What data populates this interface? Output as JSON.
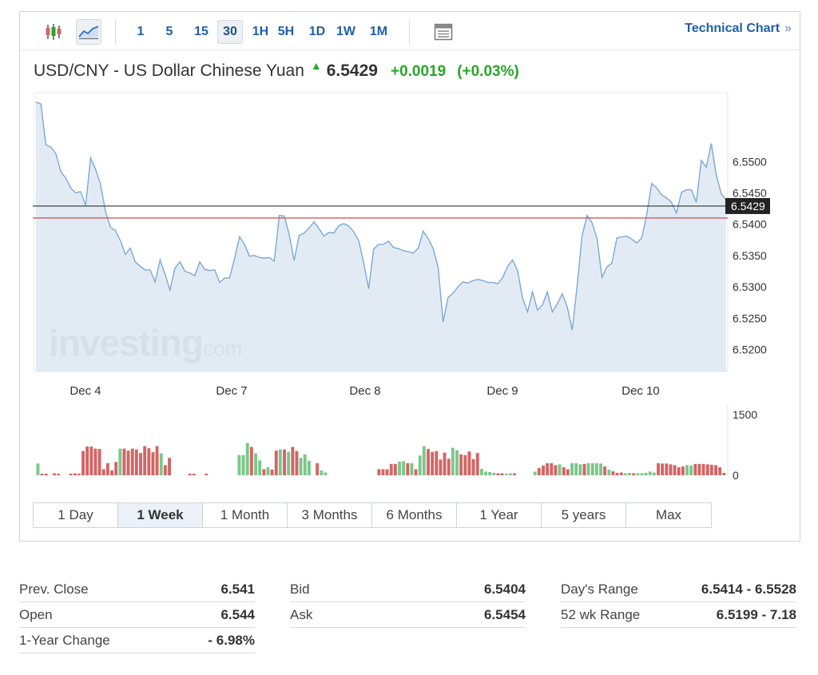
{
  "toolbar": {
    "icons": [
      "candlestick-icon",
      "area-chart-icon",
      "table-icon"
    ],
    "intervals": [
      "1",
      "5",
      "15",
      "30",
      "1H",
      "5H",
      "1D",
      "1W",
      "1M"
    ],
    "active_interval": "30",
    "tech_link": "Technical Chart",
    "tech_link_arrow": "»"
  },
  "header": {
    "pair": "USD/CNY - US Dollar Chinese Yuan",
    "price": "6.5429",
    "change": "+0.0019",
    "change_pct": "(+0.03%)",
    "change_color": "#2aa52a"
  },
  "chart_data": {
    "type": "area",
    "y_ticks": [
      "6.5500",
      "6.5450",
      "6.5400",
      "6.5350",
      "6.5300",
      "6.5250",
      "6.5200"
    ],
    "y_range": [
      6.5165,
      6.561
    ],
    "x_labels": [
      "Dec 4",
      "Dec 7",
      "Dec 8",
      "Dec 9",
      "Dec 10"
    ],
    "current_price": 6.5429,
    "current_price_label": "6.5429",
    "prev_close": 6.541,
    "watermark": "investing",
    "watermark_suffix": ".com",
    "series": [
      {
        "values": [
          6.5595,
          6.5592,
          6.5527,
          6.5523,
          6.5513,
          6.5484,
          6.5474,
          6.5458,
          6.545,
          6.5452,
          6.543,
          6.5506,
          6.5488,
          6.5464,
          6.5421,
          6.5395,
          6.539,
          6.5374,
          6.5352,
          6.5362,
          6.534,
          6.5333,
          6.5327,
          6.5327,
          6.5308,
          6.5343,
          6.532,
          6.5295,
          6.533,
          6.534,
          6.5325,
          6.5322,
          6.5318,
          6.534,
          6.5328,
          6.5326,
          6.5327,
          6.5307,
          6.5314,
          6.5314,
          6.5345,
          6.538,
          6.5368,
          6.5349,
          6.535,
          6.5347,
          6.5346,
          6.5347,
          6.5341,
          6.5414,
          6.5413,
          6.5384,
          6.5342,
          6.5382,
          6.5386,
          6.5394,
          6.5404,
          6.5393,
          6.5381,
          6.5387,
          6.5386,
          6.5398,
          6.5401,
          6.5397,
          6.5388,
          6.5374,
          6.5339,
          6.5297,
          6.536,
          6.5368,
          6.5368,
          6.5373,
          6.5363,
          6.5361,
          6.5358,
          6.5356,
          6.5354,
          6.5362,
          6.5389,
          6.5377,
          6.5361,
          6.5331,
          6.5244,
          6.5283,
          6.529,
          6.53,
          6.5308,
          6.5306,
          6.531,
          6.5312,
          6.531,
          6.5307,
          6.5307,
          6.5305,
          6.5315,
          6.5333,
          6.5343,
          6.5326,
          6.5282,
          6.526,
          6.5292,
          6.5263,
          6.5271,
          6.5292,
          6.526,
          6.5273,
          6.5289,
          6.5268,
          6.5231,
          6.5302,
          6.5382,
          6.5414,
          6.5402,
          6.5377,
          6.5315,
          6.5332,
          6.5338,
          6.5378,
          6.538,
          6.5381,
          6.5376,
          6.537,
          6.5378,
          6.5415,
          6.5465,
          6.5458,
          6.5447,
          6.5442,
          6.5435,
          6.5418,
          6.5451,
          6.5455,
          6.5455,
          6.5435,
          6.5502,
          6.5491,
          6.5529,
          6.5479,
          6.5449,
          6.5438
        ]
      }
    ],
    "volume": {
      "y_ticks": [
        "1500",
        "0"
      ],
      "y_max": 1500,
      "up_color": "#7cc68a",
      "down_color": "#d26565",
      "bars": [
        [
          290,
          1
        ],
        [
          40,
          0
        ],
        [
          30,
          0
        ],
        [
          0,
          0
        ],
        [
          50,
          0
        ],
        [
          40,
          0
        ],
        [
          0,
          0
        ],
        [
          0,
          0
        ],
        [
          40,
          0
        ],
        [
          50,
          0
        ],
        [
          40,
          0
        ],
        [
          600,
          0
        ],
        [
          710,
          0
        ],
        [
          710,
          0
        ],
        [
          660,
          0
        ],
        [
          650,
          0
        ],
        [
          150,
          0
        ],
        [
          300,
          0
        ],
        [
          120,
          0
        ],
        [
          330,
          0
        ],
        [
          660,
          1
        ],
        [
          660,
          0
        ],
        [
          610,
          0
        ],
        [
          660,
          0
        ],
        [
          640,
          0
        ],
        [
          550,
          0
        ],
        [
          720,
          0
        ],
        [
          670,
          0
        ],
        [
          570,
          0
        ],
        [
          720,
          0
        ],
        [
          540,
          1
        ],
        [
          250,
          0
        ],
        [
          430,
          0
        ],
        [
          0,
          0
        ],
        [
          0,
          0
        ],
        [
          0,
          0
        ],
        [
          0,
          0
        ],
        [
          20,
          0
        ],
        [
          30,
          0
        ],
        [
          0,
          0
        ],
        [
          0,
          0
        ],
        [
          20,
          0
        ],
        [
          0,
          0
        ],
        [
          0,
          0
        ],
        [
          0,
          0
        ],
        [
          0,
          0
        ],
        [
          0,
          0
        ],
        [
          0,
          0
        ],
        [
          0,
          0
        ],
        [
          500,
          1
        ],
        [
          500,
          1
        ],
        [
          800,
          1
        ],
        [
          700,
          0
        ],
        [
          540,
          1
        ],
        [
          370,
          1
        ],
        [
          150,
          0
        ],
        [
          200,
          1
        ],
        [
          140,
          0
        ],
        [
          610,
          0
        ],
        [
          640,
          1
        ],
        [
          640,
          0
        ],
        [
          580,
          1
        ],
        [
          700,
          0
        ],
        [
          600,
          0
        ],
        [
          430,
          1
        ],
        [
          520,
          1
        ],
        [
          360,
          1
        ],
        [
          0,
          0
        ],
        [
          300,
          0
        ],
        [
          120,
          1
        ],
        [
          70,
          1
        ],
        [
          0,
          0
        ],
        [
          0,
          0
        ],
        [
          0,
          0
        ],
        [
          0,
          0
        ],
        [
          0,
          0
        ],
        [
          0,
          0
        ],
        [
          0,
          0
        ],
        [
          0,
          0
        ],
        [
          0,
          0
        ],
        [
          0,
          0
        ],
        [
          0,
          0
        ],
        [
          0,
          0
        ],
        [
          150,
          0
        ],
        [
          150,
          0
        ],
        [
          150,
          0
        ],
        [
          280,
          0
        ],
        [
          280,
          0
        ],
        [
          340,
          1
        ],
        [
          350,
          1
        ],
        [
          300,
          0
        ],
        [
          300,
          1
        ],
        [
          150,
          0
        ],
        [
          490,
          1
        ],
        [
          720,
          1
        ],
        [
          650,
          0
        ],
        [
          580,
          0
        ],
        [
          600,
          0
        ],
        [
          390,
          0
        ],
        [
          560,
          0
        ],
        [
          410,
          0
        ],
        [
          680,
          1
        ],
        [
          620,
          1
        ],
        [
          520,
          0
        ],
        [
          500,
          0
        ],
        [
          590,
          0
        ],
        [
          400,
          0
        ],
        [
          550,
          0
        ],
        [
          160,
          1
        ],
        [
          90,
          1
        ],
        [
          80,
          1
        ],
        [
          60,
          1
        ],
        [
          50,
          0
        ],
        [
          50,
          0
        ],
        [
          40,
          1
        ],
        [
          50,
          1
        ],
        [
          50,
          0
        ],
        [
          0,
          0
        ],
        [
          0,
          0
        ],
        [
          0,
          0
        ],
        [
          0,
          0
        ],
        [
          90,
          1
        ],
        [
          180,
          0
        ],
        [
          240,
          0
        ],
        [
          300,
          0
        ],
        [
          300,
          0
        ],
        [
          250,
          0
        ],
        [
          270,
          1
        ],
        [
          200,
          0
        ],
        [
          150,
          0
        ],
        [
          300,
          1
        ],
        [
          300,
          1
        ],
        [
          270,
          1
        ],
        [
          280,
          0
        ],
        [
          300,
          1
        ],
        [
          300,
          1
        ],
        [
          300,
          1
        ],
        [
          290,
          1
        ],
        [
          220,
          0
        ],
        [
          140,
          1
        ],
        [
          100,
          0
        ],
        [
          60,
          0
        ],
        [
          70,
          0
        ],
        [
          50,
          1
        ],
        [
          60,
          1
        ],
        [
          50,
          0
        ],
        [
          50,
          1
        ],
        [
          50,
          1
        ],
        [
          60,
          1
        ],
        [
          90,
          1
        ],
        [
          70,
          1
        ],
        [
          300,
          0
        ],
        [
          290,
          0
        ],
        [
          290,
          0
        ],
        [
          270,
          0
        ],
        [
          250,
          0
        ],
        [
          200,
          0
        ],
        [
          220,
          0
        ],
        [
          250,
          1
        ],
        [
          240,
          1
        ],
        [
          280,
          0
        ],
        [
          280,
          0
        ],
        [
          280,
          0
        ],
        [
          270,
          0
        ],
        [
          260,
          0
        ],
        [
          250,
          0
        ],
        [
          200,
          0
        ],
        [
          60,
          0
        ]
      ]
    }
  },
  "periods": [
    "1 Day",
    "1 Week",
    "1 Month",
    "3 Months",
    "6 Months",
    "1 Year",
    "5 years",
    "Max"
  ],
  "active_period": "1 Week",
  "stats": [
    [
      {
        "label": "Prev. Close",
        "value": "6.541"
      },
      {
        "label": "Open",
        "value": "6.544"
      },
      {
        "label": "1-Year Change",
        "value": "- 6.98%"
      }
    ],
    [
      {
        "label": "Bid",
        "value": "6.5404"
      },
      {
        "label": "Ask",
        "value": "6.5454"
      }
    ],
    [
      {
        "label": "Day's Range",
        "value": "6.5414 - 6.5528"
      },
      {
        "label": "52 wk Range",
        "value": "6.5199 - 7.18"
      }
    ]
  ]
}
